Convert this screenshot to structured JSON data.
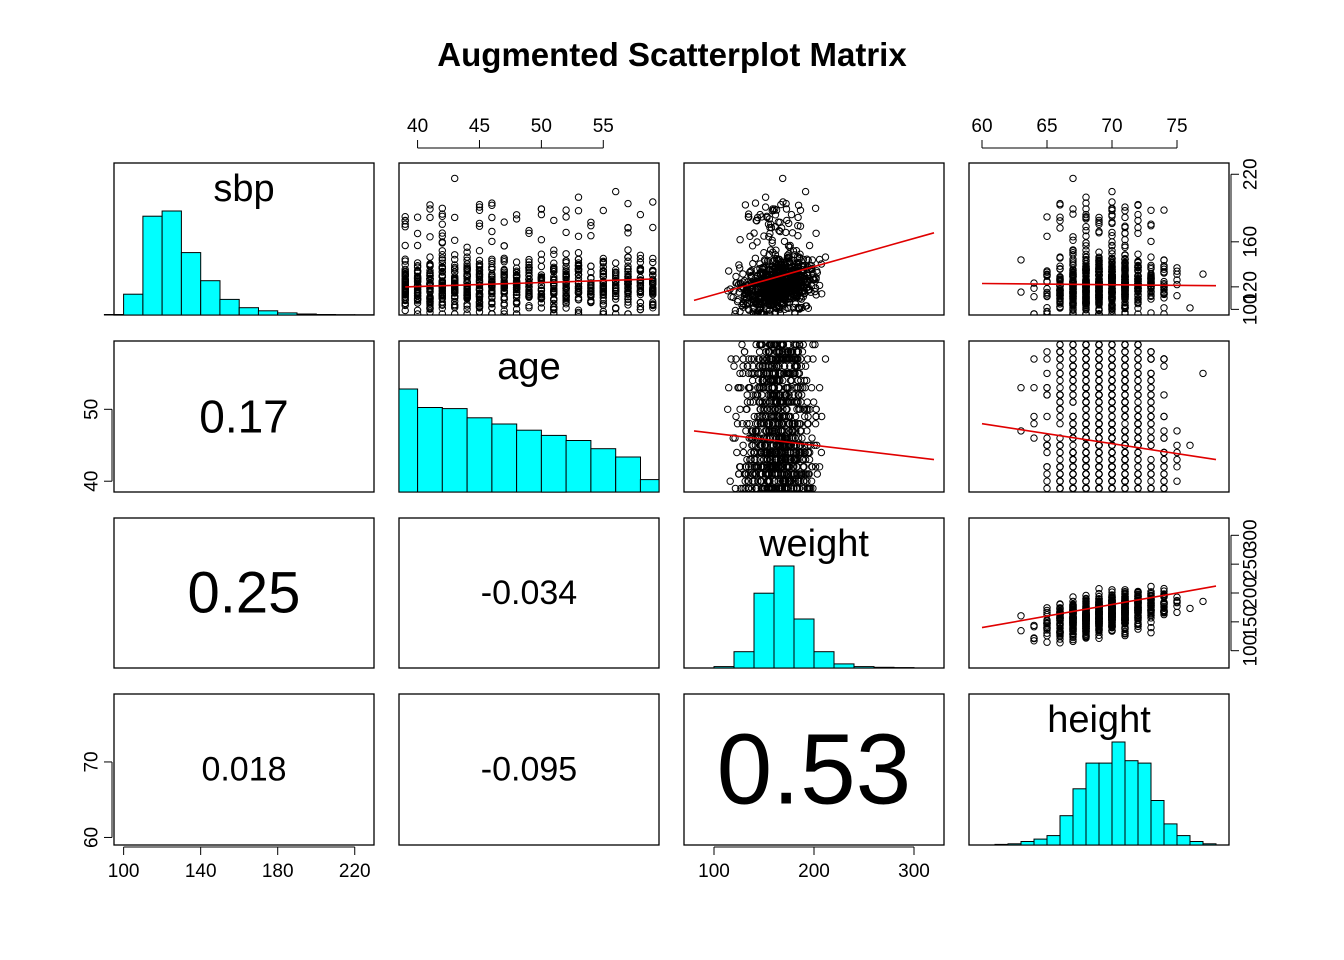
{
  "chart_data": {
    "type": "scatter",
    "title": "Augmented Scatterplot Matrix",
    "variables": [
      "sbp",
      "age",
      "weight",
      "height"
    ],
    "ranges": {
      "sbp": [
        95,
        230
      ],
      "age": [
        38.5,
        59.5
      ],
      "weight": [
        70,
        330
      ],
      "height": [
        59,
        79
      ]
    },
    "ticks": {
      "sbp": [
        100,
        140,
        180,
        220
      ],
      "sbp_right": [
        100,
        120,
        160,
        220
      ],
      "age": [
        40,
        45,
        50,
        55
      ],
      "age_left": [
        40,
        50
      ],
      "weight": [
        100,
        200,
        300
      ],
      "weight_right": [
        100,
        150,
        200,
        250,
        300
      ],
      "height": [
        60,
        65,
        70,
        75
      ],
      "height_left": [
        60,
        70
      ]
    },
    "correlations": [
      {
        "row": 1,
        "col": 0,
        "label": "0.17",
        "r": 0.17
      },
      {
        "row": 2,
        "col": 0,
        "label": "0.25",
        "r": 0.25
      },
      {
        "row": 2,
        "col": 1,
        "label": "-0.034",
        "r": -0.034
      },
      {
        "row": 3,
        "col": 0,
        "label": "0.018",
        "r": 0.018
      },
      {
        "row": 3,
        "col": 1,
        "label": "-0.095",
        "r": -0.095
      },
      {
        "row": 3,
        "col": 2,
        "label": "0.53",
        "r": 0.53
      }
    ],
    "histograms": {
      "sbp": {
        "breaks": [
          90,
          100,
          110,
          120,
          130,
          140,
          150,
          160,
          170,
          180,
          190,
          200,
          210,
          220,
          230
        ],
        "counts": [
          0.5,
          20,
          95,
          100,
          60,
          33,
          15,
          7,
          4,
          2,
          1,
          0.5,
          0.3,
          0.2
        ]
      },
      "age": {
        "breaks": [
          38.5,
          40,
          42,
          44,
          46,
          48,
          50,
          52,
          54,
          56,
          58,
          59.5
        ],
        "counts": [
          100,
          82,
          81,
          72,
          66,
          60,
          55,
          50,
          42,
          34,
          12
        ]
      },
      "weight": {
        "breaks": [
          70,
          100,
          120,
          140,
          160,
          180,
          200,
          220,
          240,
          260,
          280,
          300,
          330
        ],
        "counts": [
          0,
          1,
          12,
          55,
          75,
          36,
          12,
          3,
          1,
          0.5,
          0.3,
          0
        ]
      },
      "height": {
        "breaks": [
          59,
          60,
          61,
          62,
          63,
          64,
          65,
          66,
          67,
          68,
          69,
          70,
          71,
          72,
          73,
          74,
          75,
          76,
          77,
          78,
          79
        ],
        "counts": [
          0,
          0,
          0.5,
          1,
          3,
          5,
          8,
          25,
          48,
          70,
          70,
          88,
          72,
          70,
          38,
          18,
          8,
          3,
          1,
          0
        ]
      }
    },
    "loess": {
      "sbp~age": {
        "x": [
          39,
          59
        ],
        "y": [
          120,
          127
        ]
      },
      "sbp~weight": {
        "x": [
          80,
          320
        ],
        "y": [
          108,
          168
        ]
      },
      "sbp~height": {
        "x": [
          60,
          78
        ],
        "y": [
          123,
          121
        ]
      },
      "age~weight": {
        "x": [
          80,
          320
        ],
        "y": [
          47,
          43
        ]
      },
      "age~height": {
        "x": [
          60,
          78
        ],
        "y": [
          48,
          43
        ]
      },
      "weight~height": {
        "x": [
          60,
          78
        ],
        "y": [
          140,
          212
        ]
      }
    },
    "point_color": "#000000",
    "loess_color": "#e00000",
    "hist_fill": "#00ffff"
  }
}
